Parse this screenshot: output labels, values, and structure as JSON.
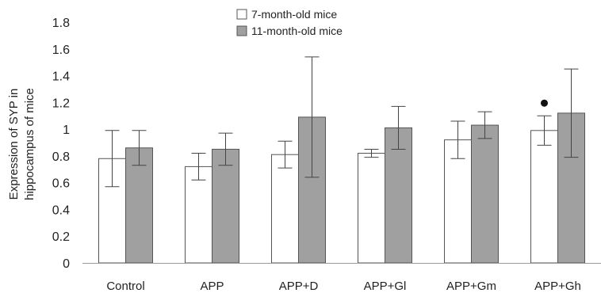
{
  "chart_data": {
    "type": "bar",
    "title": "",
    "xlabel": "",
    "ylabel_lines": [
      "Expression of SYP in",
      "hippocampus of mice"
    ],
    "ylim": [
      0,
      1.8
    ],
    "yticks": [
      "0",
      "0.2",
      "0.4",
      "0.6",
      "0.8",
      "1",
      "1.2",
      "1.4",
      "1.6",
      "1.8"
    ],
    "grid": false,
    "legend_position": "top-center",
    "categories": [
      "Control",
      "APP",
      "APP+D",
      "APP+Gl",
      "APP+Gm",
      "APP+Gh"
    ],
    "series": [
      {
        "name": "7-month-old mice",
        "color": "#ffffff",
        "values": [
          0.78,
          0.72,
          0.81,
          0.82,
          0.92,
          0.99
        ],
        "errors": [
          0.21,
          0.1,
          0.1,
          0.03,
          0.14,
          0.11
        ]
      },
      {
        "name": "11-month-old mice",
        "color": "#a0a0a0",
        "values": [
          0.86,
          0.85,
          1.09,
          1.01,
          1.03,
          1.12
        ],
        "errors": [
          0.13,
          0.12,
          0.45,
          0.16,
          0.1,
          0.33
        ]
      }
    ],
    "annotations": [
      {
        "category": "APP+Gh",
        "series": 0,
        "marker": "dot"
      }
    ]
  }
}
